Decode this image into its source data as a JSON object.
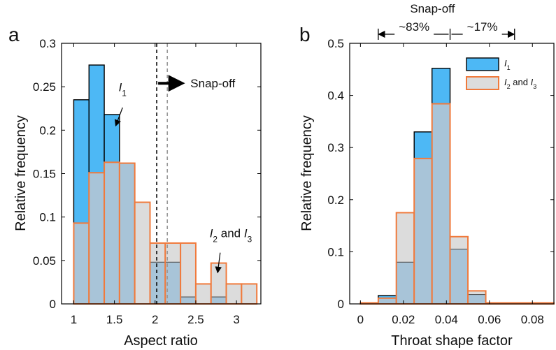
{
  "colors": {
    "i1_fill": "#4db8f5",
    "i1_stroke": "#000000",
    "i23_fill": "#dcdcdc",
    "i23_stroke": "#f07a3c",
    "overlap_fill": "#a8c4d8",
    "i1_label_color": "#3a86c8",
    "i23_label_color": "#e07a2e"
  },
  "chart_data": [
    {
      "panel_label": "a",
      "type": "bar",
      "xlabel": "Aspect ratio",
      "ylabel": "Relative frequency",
      "xlim": [
        0.85,
        3.3
      ],
      "ylim": [
        0,
        0.3
      ],
      "xticks": [
        1,
        1.5,
        2,
        2.5,
        3
      ],
      "xtick_labels": [
        "1",
        "1.5",
        "2",
        "2.5",
        "3"
      ],
      "yticks": [
        0,
        0.05,
        0.1,
        0.15,
        0.2,
        0.25,
        0.3
      ],
      "ytick_labels": [
        "0",
        "0.05",
        "0.1",
        "0.15",
        "0.2",
        "0.25",
        "0.3"
      ],
      "bin_edges": [
        1.0,
        1.1875,
        1.375,
        1.5625,
        1.75,
        1.9375,
        2.125,
        2.3125,
        2.5,
        2.6875,
        2.875,
        3.0625,
        3.25
      ],
      "series": [
        {
          "label_text": "I",
          "label_sub": "1",
          "values": [
            0.235,
            0.275,
            0.218,
            0.162,
            0.0,
            0.048,
            0.048,
            0.008,
            0.0,
            0.008,
            0.0,
            0.0
          ]
        },
        {
          "label_text": "I",
          "label_sub": "2",
          "label_mid": " and ",
          "label_text2": "I",
          "label_sub2": "3",
          "values": [
            0.093,
            0.151,
            0.163,
            0.162,
            0.117,
            0.07,
            0.07,
            0.07,
            0.023,
            0.047,
            0.023,
            0.023
          ]
        }
      ],
      "vlines": [
        {
          "x": 2.02,
          "style": "dashed",
          "color": "#000000"
        },
        {
          "x": 2.15,
          "style": "dashed",
          "color": "#999999"
        }
      ],
      "annotation_text": "Snap-off",
      "i1_label_pos": {
        "x": 1.6,
        "y": 0.245
      },
      "i1_arrow": {
        "from": [
          1.6,
          0.226
        ],
        "to": [
          1.52,
          0.206
        ]
      },
      "i23_label_pos": {
        "x": 2.93,
        "y": 0.077
      },
      "i23_arrow": {
        "from": [
          2.8,
          0.059
        ],
        "to": [
          2.77,
          0.037
        ]
      },
      "arrow_text_pos": {
        "x": 2.4,
        "y": 0.254
      },
      "arrow": {
        "from": [
          2.02,
          0.254
        ],
        "to": [
          2.3,
          0.254
        ]
      }
    },
    {
      "panel_label": "b",
      "type": "bar",
      "xlabel": "Throat shape factor",
      "ylabel": "Relative frequency",
      "xlim": [
        -0.005,
        0.09
      ],
      "ylim": [
        0,
        0.5
      ],
      "xticks": [
        0,
        0.02,
        0.04,
        0.06,
        0.08
      ],
      "xtick_labels": [
        "0",
        "0.02",
        "0.04",
        "0.06",
        "0.08"
      ],
      "yticks": [
        0,
        0.1,
        0.2,
        0.3,
        0.4,
        0.5
      ],
      "ytick_labels": [
        "0",
        "0.1",
        "0.2",
        "0.3",
        "0.4",
        "0.5"
      ],
      "bin_edges": [
        0.0,
        0.0083,
        0.0167,
        0.025,
        0.0333,
        0.0417,
        0.05,
        0.0583,
        0.0667,
        0.075,
        0.0833,
        0.09
      ],
      "series": [
        {
          "label_text": "I",
          "label_sub": "1",
          "values": [
            0.002,
            0.016,
            0.08,
            0.33,
            0.452,
            0.105,
            0.018,
            0.002,
            0.002,
            0.002,
            0.002
          ]
        },
        {
          "label_text": "I",
          "label_sub": "2",
          "label_mid": " and ",
          "label_text2": "I",
          "label_sub2": "3",
          "values": [
            0.002,
            0.011,
            0.175,
            0.279,
            0.384,
            0.129,
            0.025,
            0.002,
            0.002,
            0.002,
            0.002
          ]
        }
      ],
      "top_title": "Snap-off",
      "split_left": "~83%",
      "split_right": "~17%",
      "split_x": [
        0.0083,
        0.0417,
        0.0717
      ]
    }
  ]
}
